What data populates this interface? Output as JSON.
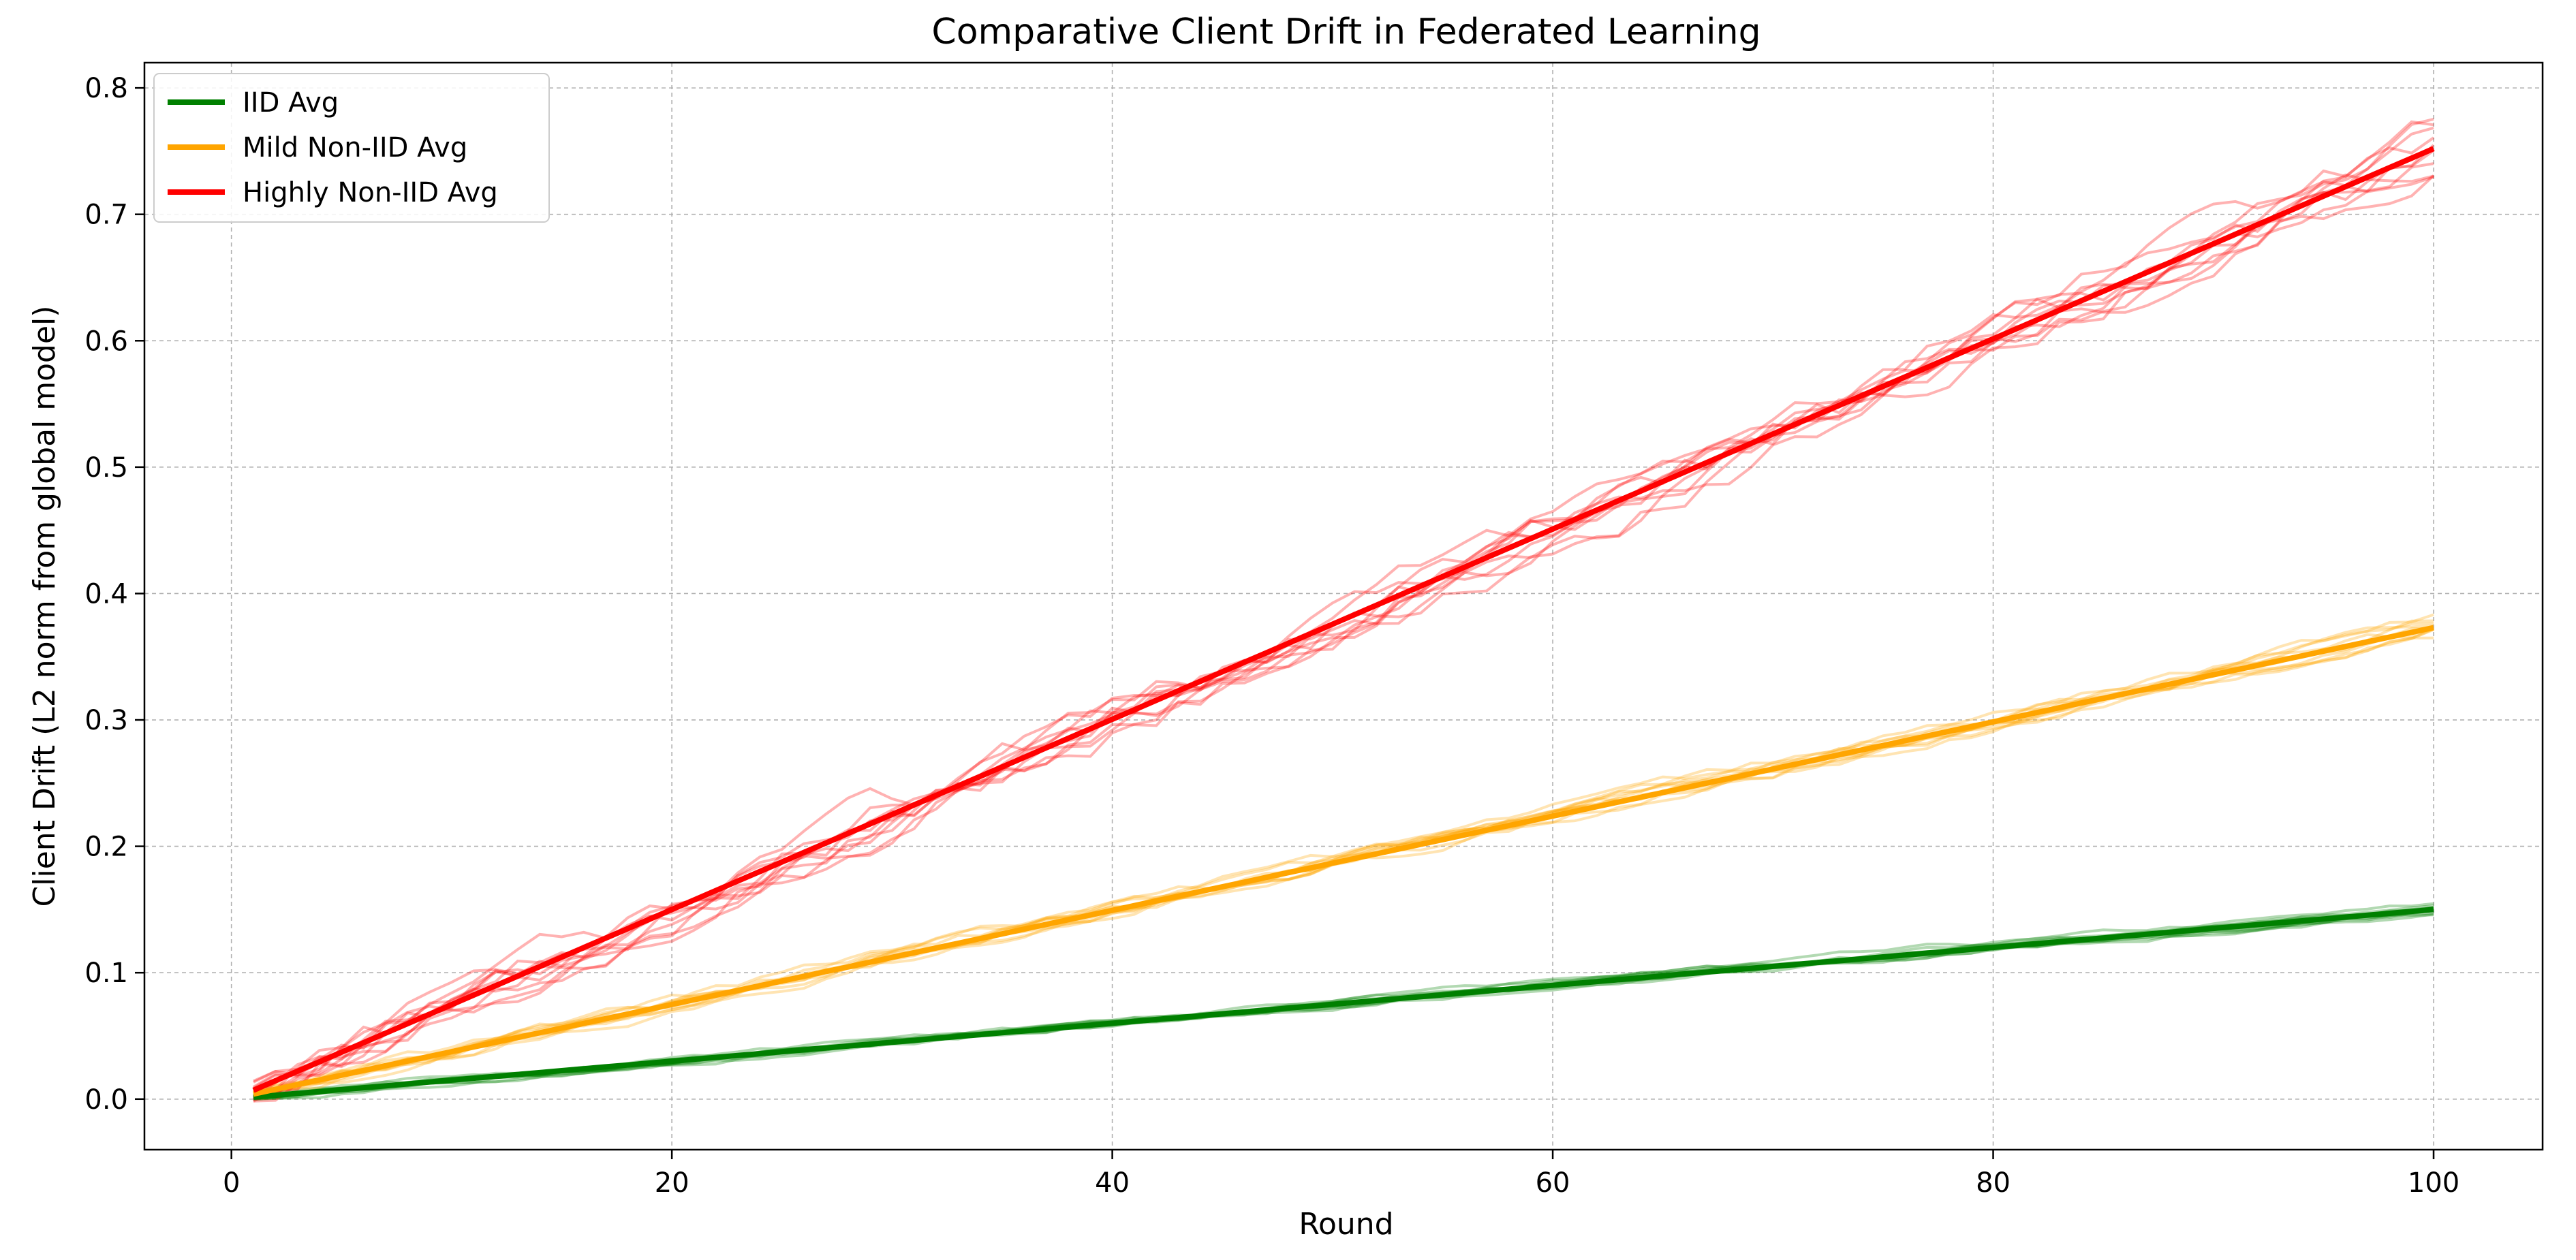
{
  "chart_data": {
    "type": "line",
    "title": "Comparative Client Drift in Federated Learning",
    "xlabel": "Round",
    "ylabel": "Client Drift (L2 norm from global model)",
    "xlim": [
      -3.95,
      104.95
    ],
    "ylim": [
      -0.04,
      0.82
    ],
    "xticks": [
      0,
      20,
      40,
      60,
      80,
      100
    ],
    "yticks": [
      0.0,
      0.1,
      0.2,
      0.3,
      0.4,
      0.5,
      0.6,
      0.7,
      0.8
    ],
    "grid": true,
    "legend_position": "top-left",
    "rounds": [
      1,
      100
    ],
    "series": [
      {
        "name": "IID Avg",
        "color": "#008000",
        "start": 0.0015,
        "end": 0.15,
        "client_spread": 0.003
      },
      {
        "name": "Mild Non-IID Avg",
        "color": "#ffa500",
        "start": 0.004,
        "end": 0.373,
        "client_spread": 0.006
      },
      {
        "name": "Highly Non-IID Avg",
        "color": "#ff0000",
        "start": 0.007,
        "end": 0.752,
        "client_spread": 0.016
      }
    ],
    "clients_per_series": 10
  }
}
